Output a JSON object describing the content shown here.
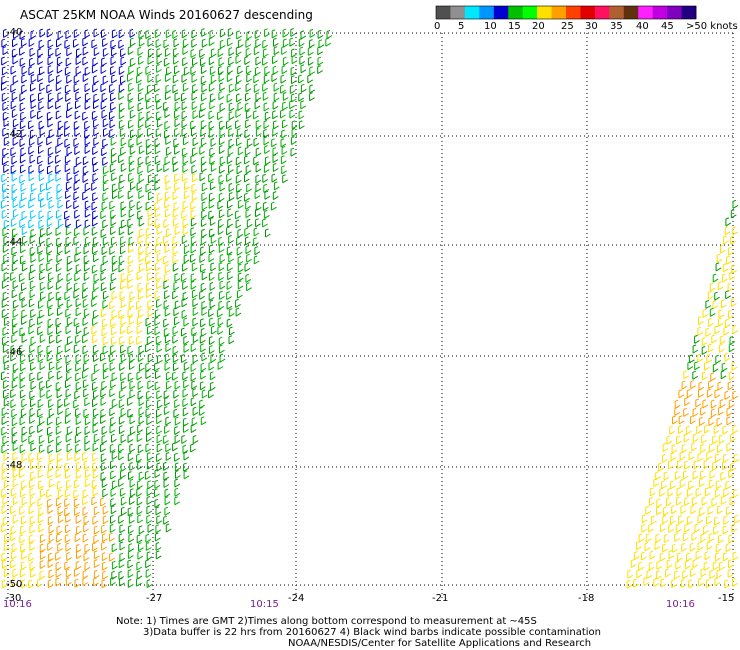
{
  "title": "ASCAT 25KM NOAA Winds 20160627 descending",
  "colorbar": {
    "labels": [
      "0",
      "5",
      "10",
      "15",
      "20",
      "25",
      "30",
      "35",
      "40",
      "45",
      ">50 knots"
    ],
    "colors": [
      "#505050",
      "#909090",
      "#00e8ff",
      "#0096ff",
      "#0000d0",
      "#00c000",
      "#00ff00",
      "#ffe000",
      "#ffa000",
      "#ff4000",
      "#e00000",
      "#ff1060",
      "#b06030",
      "#603010",
      "#ff20ff",
      "#c000e0",
      "#8000c0",
      "#200080"
    ]
  },
  "axes": {
    "lat_labels": [
      "-40",
      "-42",
      "-44",
      "-46",
      "-48",
      "-50"
    ],
    "lon_labels": [
      "-30",
      "-27",
      "-24",
      "-21",
      "-18",
      "-15"
    ]
  },
  "times": [
    "10:16",
    "10:15",
    "10:16"
  ],
  "notes": [
    "Note: 1) Times are GMT 2)Times along bottom correspond to measurement at ~45S",
    "3)Data buffer is 22 hrs from 20160627 4) Black wind barbs indicate possible contamination",
    "NOAA/NESDIS/Center for Satellite Applications and Research"
  ]
}
